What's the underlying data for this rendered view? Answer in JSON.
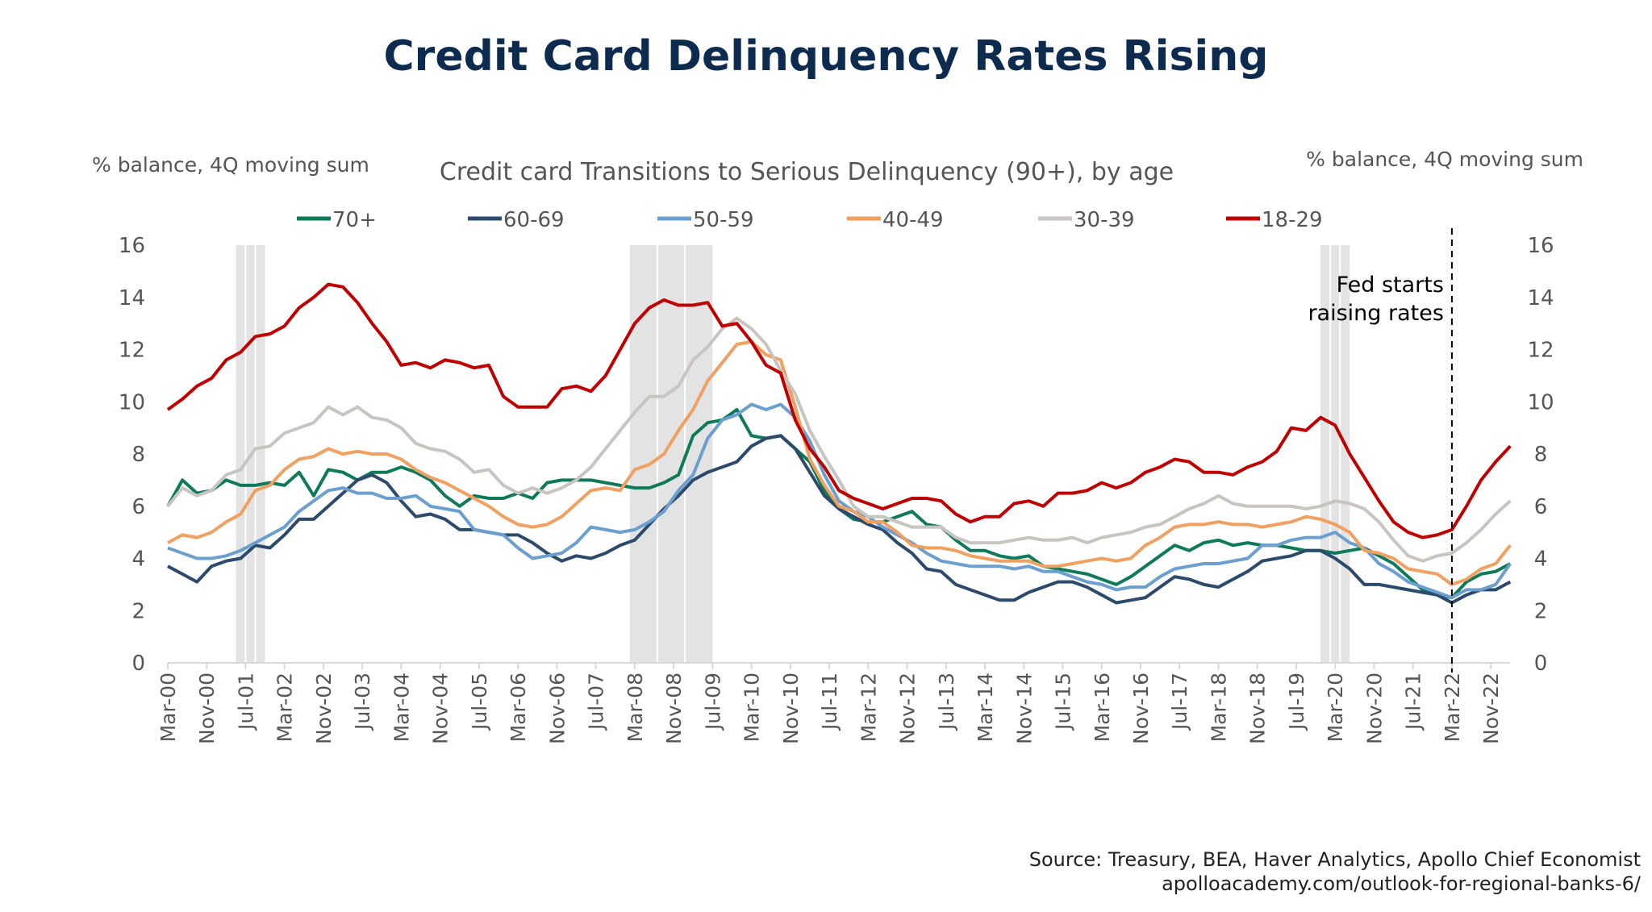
{
  "title": "Credit Card Delinquency Rates Rising",
  "source_line1": "Source: Treasury, BEA, Haver Analytics, Apollo Chief Economist",
  "source_line2": "apolloacademy.com/outlook-for-regional-banks-6/",
  "chart_data": {
    "type": "line",
    "title": "Credit card Transitions to Serious Delinquency (90+), by age",
    "ylabel_left": "% balance, 4Q moving sum",
    "ylabel_right": "% balance, 4Q moving sum",
    "ylim": [
      0,
      16
    ],
    "yticks": [
      0,
      2,
      4,
      6,
      8,
      10,
      12,
      14,
      16
    ],
    "x_start": "Mar-00",
    "x_end": "Mar-23",
    "x_frequency": "quarterly",
    "xtick_labels": [
      "Mar-00",
      "Nov-00",
      "Jul-01",
      "Mar-02",
      "Nov-02",
      "Jul-03",
      "Mar-04",
      "Nov-04",
      "Jul-05",
      "Mar-06",
      "Nov-06",
      "Jul-07",
      "Mar-08",
      "Nov-08",
      "Jul-09",
      "Mar-10",
      "Nov-10",
      "Jul-11",
      "Mar-12",
      "Nov-12",
      "Jul-13",
      "Mar-14",
      "Nov-14",
      "Jul-15",
      "Mar-16",
      "Nov-16",
      "Jul-17",
      "Mar-18",
      "Nov-18",
      "Jul-19",
      "Mar-20",
      "Nov-20",
      "Jul-21",
      "Mar-22",
      "Nov-22"
    ],
    "grid": false,
    "legend_position": "top",
    "recessions": [
      [
        "May-01",
        "Nov-01"
      ],
      [
        "Feb-08",
        "Jul-09"
      ],
      [
        "Dec-19",
        "Jun-20"
      ]
    ],
    "annotation": {
      "x": "Mar-22",
      "line1": "Fed starts",
      "line2": "raising rates",
      "style": "dashed vertical line"
    },
    "series": [
      {
        "name": "70+",
        "color": "#0f7a5a",
        "values": [
          6.0,
          7.0,
          6.5,
          6.6,
          7.0,
          6.8,
          6.8,
          6.9,
          6.8,
          7.3,
          6.4,
          7.4,
          7.3,
          7.0,
          7.3,
          7.3,
          7.5,
          7.3,
          7.0,
          6.4,
          6.0,
          6.4,
          6.3,
          6.3,
          6.5,
          6.3,
          6.9,
          7.0,
          7.0,
          7.0,
          6.9,
          6.8,
          6.7,
          6.7,
          6.9,
          7.2,
          8.7,
          9.2,
          9.3,
          9.7,
          8.7,
          8.6,
          8.7,
          8.2,
          7.7,
          6.6,
          5.9,
          5.5,
          5.4,
          5.4,
          5.6,
          5.8,
          5.3,
          5.2,
          4.7,
          4.3,
          4.3,
          4.1,
          4.0,
          4.1,
          3.7,
          3.6,
          3.5,
          3.4,
          3.2,
          3.0,
          3.3,
          3.7,
          4.1,
          4.5,
          4.3,
          4.6,
          4.7,
          4.5,
          4.6,
          4.5,
          4.5,
          4.4,
          4.3,
          4.3,
          4.2,
          4.3,
          4.4,
          4.1,
          3.8,
          3.3,
          2.8,
          2.6,
          2.5,
          3.1,
          3.4,
          3.5,
          3.8
        ]
      },
      {
        "name": "60-69",
        "color": "#2c4a6b",
        "values": [
          3.7,
          3.4,
          3.1,
          3.7,
          3.9,
          4.0,
          4.5,
          4.4,
          4.9,
          5.5,
          5.5,
          6.0,
          6.5,
          7.0,
          7.2,
          6.9,
          6.2,
          5.6,
          5.7,
          5.5,
          5.1,
          5.1,
          5.0,
          4.9,
          4.9,
          4.6,
          4.2,
          3.9,
          4.1,
          4.0,
          4.2,
          4.5,
          4.7,
          5.3,
          5.9,
          6.4,
          7.0,
          7.3,
          7.5,
          7.7,
          8.3,
          8.6,
          8.7,
          8.2,
          7.3,
          6.4,
          5.9,
          5.6,
          5.3,
          5.1,
          4.6,
          4.2,
          3.6,
          3.5,
          3.0,
          2.8,
          2.6,
          2.4,
          2.4,
          2.7,
          2.9,
          3.1,
          3.1,
          2.9,
          2.6,
          2.3,
          2.4,
          2.5,
          2.9,
          3.3,
          3.2,
          3.0,
          2.9,
          3.2,
          3.5,
          3.9,
          4.0,
          4.1,
          4.3,
          4.3,
          4.0,
          3.6,
          3.0,
          3.0,
          2.9,
          2.8,
          2.7,
          2.6,
          2.3,
          2.6,
          2.8,
          2.8,
          3.1
        ]
      },
      {
        "name": "50-59",
        "color": "#6a9fd0",
        "values": [
          4.4,
          4.2,
          4.0,
          4.0,
          4.1,
          4.3,
          4.6,
          4.9,
          5.2,
          5.8,
          6.2,
          6.6,
          6.7,
          6.5,
          6.5,
          6.3,
          6.3,
          6.4,
          6.0,
          5.9,
          5.8,
          5.1,
          5.0,
          4.9,
          4.4,
          4.0,
          4.1,
          4.2,
          4.6,
          5.2,
          5.1,
          5.0,
          5.1,
          5.4,
          5.8,
          6.6,
          7.2,
          8.6,
          9.3,
          9.5,
          9.9,
          9.7,
          9.9,
          9.4,
          8.5,
          7.2,
          6.2,
          5.8,
          5.6,
          5.2,
          4.9,
          4.6,
          4.2,
          3.9,
          3.8,
          3.7,
          3.7,
          3.7,
          3.6,
          3.7,
          3.5,
          3.5,
          3.3,
          3.1,
          3.0,
          2.8,
          2.9,
          2.9,
          3.3,
          3.6,
          3.7,
          3.8,
          3.8,
          3.9,
          4.0,
          4.5,
          4.5,
          4.7,
          4.8,
          4.8,
          5.0,
          4.6,
          4.4,
          3.8,
          3.5,
          3.1,
          2.9,
          2.7,
          2.5,
          2.8,
          2.8,
          3.0,
          3.8
        ]
      },
      {
        "name": "40-49",
        "color": "#f0a060",
        "values": [
          4.6,
          4.9,
          4.8,
          5.0,
          5.4,
          5.7,
          6.6,
          6.8,
          7.4,
          7.8,
          7.9,
          8.2,
          8.0,
          8.1,
          8.0,
          8.0,
          7.8,
          7.4,
          7.1,
          6.9,
          6.6,
          6.3,
          6.0,
          5.6,
          5.3,
          5.2,
          5.3,
          5.6,
          6.1,
          6.6,
          6.7,
          6.6,
          7.4,
          7.6,
          8.0,
          8.9,
          9.7,
          10.8,
          11.5,
          12.2,
          12.3,
          11.8,
          11.6,
          9.8,
          7.8,
          6.8,
          6.0,
          5.8,
          5.4,
          5.4,
          5.0,
          4.5,
          4.4,
          4.4,
          4.3,
          4.1,
          4.0,
          3.9,
          3.9,
          3.9,
          3.7,
          3.7,
          3.8,
          3.9,
          4.0,
          3.9,
          4.0,
          4.5,
          4.8,
          5.2,
          5.3,
          5.3,
          5.4,
          5.3,
          5.3,
          5.2,
          5.3,
          5.4,
          5.6,
          5.5,
          5.3,
          5.0,
          4.3,
          4.2,
          4.0,
          3.6,
          3.5,
          3.4,
          3.0,
          3.2,
          3.6,
          3.8,
          4.5
        ]
      },
      {
        "name": "30-39",
        "color": "#c8c4c0",
        "values": [
          6.0,
          6.7,
          6.4,
          6.6,
          7.2,
          7.4,
          8.2,
          8.3,
          8.8,
          9.0,
          9.2,
          9.8,
          9.5,
          9.8,
          9.4,
          9.3,
          9.0,
          8.4,
          8.2,
          8.1,
          7.8,
          7.3,
          7.4,
          6.8,
          6.5,
          6.7,
          6.5,
          6.7,
          7.0,
          7.5,
          8.2,
          8.9,
          9.6,
          10.2,
          10.2,
          10.6,
          11.6,
          12.1,
          12.8,
          13.2,
          12.8,
          12.2,
          11.2,
          10.3,
          8.9,
          7.9,
          7.0,
          6.0,
          5.6,
          5.6,
          5.4,
          5.2,
          5.2,
          5.2,
          4.8,
          4.6,
          4.6,
          4.6,
          4.7,
          4.8,
          4.7,
          4.7,
          4.8,
          4.6,
          4.8,
          4.9,
          5.0,
          5.2,
          5.3,
          5.6,
          5.9,
          6.1,
          6.4,
          6.1,
          6.0,
          6.0,
          6.0,
          6.0,
          5.9,
          6.0,
          6.2,
          6.1,
          5.9,
          5.4,
          4.7,
          4.1,
          3.9,
          4.1,
          4.2,
          4.6,
          5.1,
          5.7,
          6.2
        ]
      },
      {
        "name": "18-29",
        "color": "#c00000",
        "values": [
          9.7,
          10.1,
          10.6,
          10.9,
          11.6,
          11.9,
          12.5,
          12.6,
          12.9,
          13.6,
          14.0,
          14.5,
          14.4,
          13.8,
          13.0,
          12.3,
          11.4,
          11.5,
          11.3,
          11.6,
          11.5,
          11.3,
          11.4,
          10.2,
          9.8,
          9.8,
          9.8,
          10.5,
          10.6,
          10.4,
          11.0,
          12.0,
          13.0,
          13.6,
          13.9,
          13.7,
          13.7,
          13.8,
          12.9,
          13.0,
          12.3,
          11.4,
          11.1,
          9.3,
          8.2,
          7.5,
          6.6,
          6.3,
          6.1,
          5.9,
          6.1,
          6.3,
          6.3,
          6.2,
          5.7,
          5.4,
          5.6,
          5.6,
          6.1,
          6.2,
          6.0,
          6.5,
          6.5,
          6.6,
          6.9,
          6.7,
          6.9,
          7.3,
          7.5,
          7.8,
          7.7,
          7.3,
          7.3,
          7.2,
          7.5,
          7.7,
          8.1,
          9.0,
          8.9,
          9.4,
          9.1,
          8.0,
          7.1,
          6.2,
          5.4,
          5.0,
          4.8,
          4.9,
          5.1,
          6.0,
          7.0,
          7.7,
          8.3
        ]
      }
    ]
  }
}
